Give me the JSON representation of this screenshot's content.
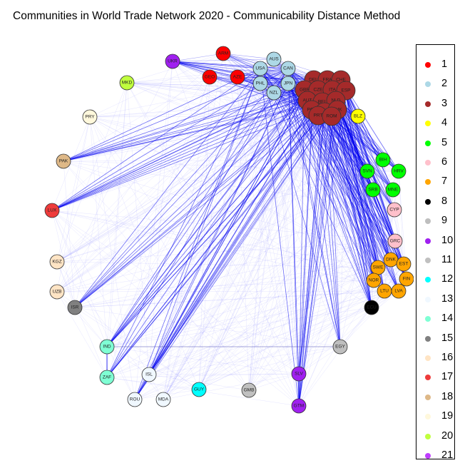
{
  "title": "Communities in World Trade Network 2020 - Communicability Distance Method",
  "legend": [
    {
      "label": "1",
      "color": "#ff0000"
    },
    {
      "label": "2",
      "color": "#add8e6"
    },
    {
      "label": "3",
      "color": "#a52a2a"
    },
    {
      "label": "4",
      "color": "#ffff00"
    },
    {
      "label": "5",
      "color": "#00ff00"
    },
    {
      "label": "6",
      "color": "#ffc0cb"
    },
    {
      "label": "7",
      "color": "#ffa500"
    },
    {
      "label": "8",
      "color": "#000000"
    },
    {
      "label": "9",
      "color": "#bebebe"
    },
    {
      "label": "10",
      "color": "#a020f0"
    },
    {
      "label": "11",
      "color": "#c0c0c0"
    },
    {
      "label": "12",
      "color": "#00ffff"
    },
    {
      "label": "13",
      "color": "#f0f8ff"
    },
    {
      "label": "14",
      "color": "#7fffd4"
    },
    {
      "label": "15",
      "color": "#808080"
    },
    {
      "label": "16",
      "color": "#ffe4c4"
    },
    {
      "label": "17",
      "color": "#ee3b3b"
    },
    {
      "label": "18",
      "color": "#deb887"
    },
    {
      "label": "19",
      "color": "#fff8dc"
    },
    {
      "label": "20",
      "color": "#c0ff3e"
    },
    {
      "label": "21",
      "color": "#bf3eff"
    }
  ],
  "nodes": [
    {
      "id": "ARM",
      "community": 1
    },
    {
      "id": "GEO",
      "community": 1
    },
    {
      "id": "AZE",
      "community": 1
    },
    {
      "id": "AUS",
      "community": 2
    },
    {
      "id": "USA",
      "community": 2
    },
    {
      "id": "CAN",
      "community": 2
    },
    {
      "id": "PHL",
      "community": 2
    },
    {
      "id": "JPN",
      "community": 2
    },
    {
      "id": "NZL",
      "community": 2
    },
    {
      "id": "DEU",
      "community": 3
    },
    {
      "id": "FRA",
      "community": 3
    },
    {
      "id": "CHE",
      "community": 3
    },
    {
      "id": "GBR",
      "community": 3
    },
    {
      "id": "CZE",
      "community": 3
    },
    {
      "id": "ITA",
      "community": 3
    },
    {
      "id": "ESP",
      "community": 3
    },
    {
      "id": "AUT",
      "community": 3
    },
    {
      "id": "BEL",
      "community": 3
    },
    {
      "id": "NLD",
      "community": 3
    },
    {
      "id": "POL",
      "community": 3
    },
    {
      "id": "HUN",
      "community": 3
    },
    {
      "id": "SVK",
      "community": 3
    },
    {
      "id": "PRT",
      "community": 3
    },
    {
      "id": "ROM",
      "community": 3
    },
    {
      "id": "BLZ",
      "community": 4
    },
    {
      "id": "BIH",
      "community": 5
    },
    {
      "id": "SVN",
      "community": 5
    },
    {
      "id": "HRV",
      "community": 5
    },
    {
      "id": "SRB",
      "community": 5
    },
    {
      "id": "MNE",
      "community": 5
    },
    {
      "id": "CYP",
      "community": 6
    },
    {
      "id": "GRC",
      "community": 6
    },
    {
      "id": "DNK",
      "community": 7
    },
    {
      "id": "SWE",
      "community": 7
    },
    {
      "id": "EST",
      "community": 7
    },
    {
      "id": "NOR",
      "community": 7
    },
    {
      "id": "FIN",
      "community": 7
    },
    {
      "id": "LTU",
      "community": 7
    },
    {
      "id": "LVA",
      "community": 7
    },
    {
      "id": "ECU",
      "community": 8
    },
    {
      "id": "EGY",
      "community": 9
    },
    {
      "id": "UKR",
      "community": 10
    },
    {
      "id": "SLV",
      "community": 10
    },
    {
      "id": "GTM",
      "community": 10
    },
    {
      "id": "GMB",
      "community": 11
    },
    {
      "id": "GUY",
      "community": 12
    },
    {
      "id": "ISL",
      "community": 13
    },
    {
      "id": "ROU",
      "community": 13
    },
    {
      "id": "MDA",
      "community": 13
    },
    {
      "id": "IND",
      "community": 14
    },
    {
      "id": "ZAF",
      "community": 14
    },
    {
      "id": "ISR",
      "community": 15
    },
    {
      "id": "KGZ",
      "community": 16
    },
    {
      "id": "UZB",
      "community": 16
    },
    {
      "id": "LUX",
      "community": 17
    },
    {
      "id": "PAK",
      "community": 18
    },
    {
      "id": "PRY",
      "community": 19
    },
    {
      "id": "MKD",
      "community": 20
    }
  ]
}
